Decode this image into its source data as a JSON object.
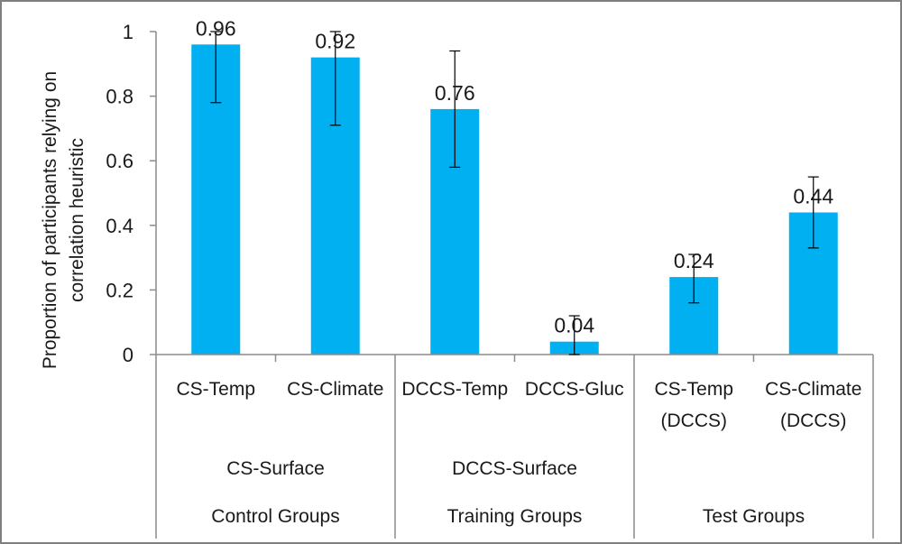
{
  "chart_data": {
    "type": "bar",
    "title": "",
    "xlabel": "",
    "ylabel": [
      "Proportion of participants relying on",
      "correlation heuristic"
    ],
    "ylim": [
      0,
      1
    ],
    "yticks": [
      0,
      0.2,
      0.4,
      0.6,
      0.8,
      1
    ],
    "ytick_labels": [
      "0",
      "0.2",
      "0.4",
      "0.6",
      "0.8",
      "1"
    ],
    "grid": false,
    "bar_color": "#00b0f0",
    "categories": [
      [
        "CS-Temp"
      ],
      [
        "CS-Climate"
      ],
      [
        "DCCS-Temp"
      ],
      [
        "DCCS-Gluc"
      ],
      [
        "CS-Temp",
        "(DCCS)"
      ],
      [
        "CS-Climate",
        "(DCCS)"
      ]
    ],
    "values": [
      0.96,
      0.92,
      0.76,
      0.04,
      0.24,
      0.44
    ],
    "value_labels": [
      "0.96",
      "0.92",
      "0.76",
      "0.04",
      "0.24",
      "0.44"
    ],
    "error_low": [
      0.78,
      0.71,
      0.58,
      0.0,
      0.16,
      0.33
    ],
    "error_high": [
      1.0,
      1.0,
      0.94,
      0.12,
      0.31,
      0.55
    ],
    "subgroups": [
      {
        "label": "CS-Surface",
        "start": 0,
        "end": 1
      },
      {
        "label": "DCCS-Surface",
        "start": 2,
        "end": 3
      },
      {
        "label": "",
        "start": 4,
        "end": 5
      }
    ],
    "groups": [
      {
        "label": "Control Groups",
        "start": 0,
        "end": 1
      },
      {
        "label": "Training Groups",
        "start": 2,
        "end": 3
      },
      {
        "label": "Test Groups",
        "start": 4,
        "end": 5
      }
    ]
  }
}
